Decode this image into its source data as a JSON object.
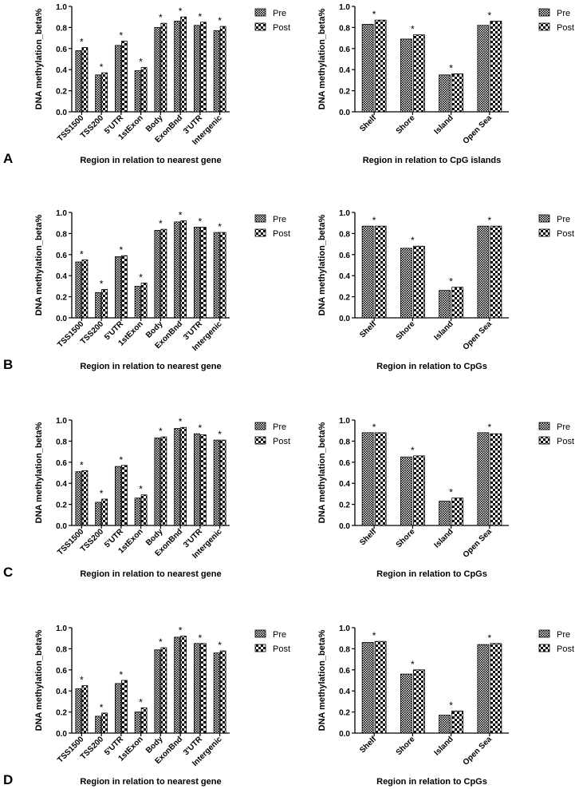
{
  "legend": {
    "pre": "Pre",
    "post": "Post"
  },
  "star": "*",
  "chart_data": [
    {
      "panel_letter": "A",
      "type": "bar",
      "ylabel": "DNA methylation_beta%",
      "xlabel": "Region in relation to nearest gene",
      "ylim": [
        0,
        1.0
      ],
      "yticks": [
        "0.0",
        "0.2",
        "0.4",
        "0.6",
        "0.8",
        "1.0"
      ],
      "categories": [
        "TSS1500",
        "TSS200",
        "5'UTR",
        "1stExon",
        "Body",
        "ExonBnd",
        "3'UTR",
        "Intergenic"
      ],
      "series": [
        {
          "name": "Pre",
          "values": [
            0.58,
            0.35,
            0.63,
            0.39,
            0.8,
            0.86,
            0.82,
            0.77
          ]
        },
        {
          "name": "Post",
          "values": [
            0.61,
            0.37,
            0.67,
            0.42,
            0.84,
            0.9,
            0.85,
            0.81
          ]
        }
      ],
      "annotations": [
        "*",
        "*",
        "*",
        "*",
        "*",
        "*",
        "*",
        "*"
      ],
      "legend_position": "top-right"
    },
    {
      "panel_letter": "",
      "type": "bar",
      "ylabel": "DNA methylation_beta%",
      "xlabel": "Region in relation to CpG islands",
      "ylim": [
        0,
        1.0
      ],
      "yticks": [
        "0.0",
        "0.2",
        "0.4",
        "0.6",
        "0.8",
        "1.0"
      ],
      "categories": [
        "Shelf",
        "Shore",
        "Island",
        "Open Sea"
      ],
      "series": [
        {
          "name": "Pre",
          "values": [
            0.83,
            0.69,
            0.35,
            0.82
          ]
        },
        {
          "name": "Post",
          "values": [
            0.87,
            0.73,
            0.36,
            0.86
          ]
        }
      ],
      "annotations": [
        "*",
        "*",
        "*",
        "*"
      ],
      "legend_position": "top-right"
    },
    {
      "panel_letter": "B",
      "type": "bar",
      "ylabel": "DNA methylation_beta%",
      "xlabel": "Region in relation to nearest gene",
      "ylim": [
        0,
        1.0
      ],
      "yticks": [
        "0.0",
        "0.2",
        "0.4",
        "0.6",
        "0.8",
        "1.0"
      ],
      "categories": [
        "TSS1500",
        "TSS200",
        "5'UTR",
        "1stExon",
        "Body",
        "ExonBnd",
        "3'UTR",
        "Intergenic"
      ],
      "series": [
        {
          "name": "Pre",
          "values": [
            0.53,
            0.24,
            0.58,
            0.3,
            0.83,
            0.91,
            0.86,
            0.81
          ]
        },
        {
          "name": "Post",
          "values": [
            0.55,
            0.27,
            0.59,
            0.33,
            0.84,
            0.92,
            0.86,
            0.81
          ]
        }
      ],
      "annotations": [
        "*",
        "*",
        "*",
        "*",
        "*",
        "*",
        "*",
        "*"
      ],
      "legend_position": "top-right"
    },
    {
      "panel_letter": "",
      "type": "bar",
      "ylabel": "DNA methylation_beta%",
      "xlabel": "Region in relation to CpGs",
      "ylim": [
        0,
        1.0
      ],
      "yticks": [
        "0.0",
        "0.2",
        "0.4",
        "0.6",
        "0.8",
        "1.0"
      ],
      "categories": [
        "Shelf",
        "Shore",
        "Island",
        "Open Sea"
      ],
      "series": [
        {
          "name": "Pre",
          "values": [
            0.87,
            0.66,
            0.26,
            0.87
          ]
        },
        {
          "name": "Post",
          "values": [
            0.87,
            0.68,
            0.29,
            0.87
          ]
        }
      ],
      "annotations": [
        "*",
        "*",
        "*",
        "*"
      ],
      "legend_position": "top-right"
    },
    {
      "panel_letter": "C",
      "type": "bar",
      "ylabel": "DNA methylation_beta%",
      "xlabel": "Region in relation to nearest gene",
      "ylim": [
        0,
        1.0
      ],
      "yticks": [
        "0.0",
        "0.2",
        "0.4",
        "0.6",
        "0.8",
        "1.0"
      ],
      "categories": [
        "TSS1500",
        "TSS200",
        "5'UTR",
        "1stExon",
        "Body",
        "ExonBnd",
        "3'UTR",
        "Intergenic"
      ],
      "series": [
        {
          "name": "Pre",
          "values": [
            0.51,
            0.22,
            0.56,
            0.26,
            0.83,
            0.92,
            0.87,
            0.81
          ]
        },
        {
          "name": "Post",
          "values": [
            0.52,
            0.25,
            0.57,
            0.29,
            0.84,
            0.93,
            0.86,
            0.81
          ]
        }
      ],
      "annotations": [
        "*",
        "*",
        "*",
        "*",
        "*",
        "*",
        "*",
        "*"
      ],
      "legend_position": "top-right"
    },
    {
      "panel_letter": "",
      "type": "bar",
      "ylabel": "DNA methylation_beta%",
      "xlabel": "Region in relation to CpGs",
      "ylim": [
        0,
        1.0
      ],
      "yticks": [
        "0.0",
        "0.2",
        "0.4",
        "0.6",
        "0.8",
        "1.0"
      ],
      "categories": [
        "Shelf",
        "Shore",
        "Island",
        "Open Sea"
      ],
      "series": [
        {
          "name": "Pre",
          "values": [
            0.88,
            0.65,
            0.23,
            0.88
          ]
        },
        {
          "name": "Post",
          "values": [
            0.88,
            0.66,
            0.26,
            0.87
          ]
        }
      ],
      "annotations": [
        "*",
        "*",
        "*",
        "*"
      ],
      "legend_position": "top-right"
    },
    {
      "panel_letter": "D",
      "type": "bar",
      "ylabel": "DNA methylation_beta%",
      "xlabel": "Region in relation to nearest gene",
      "ylim": [
        0,
        1.0
      ],
      "yticks": [
        "0.0",
        "0.2",
        "0.4",
        "0.6",
        "0.8",
        "1.0"
      ],
      "categories": [
        "TSS1500",
        "TSS200",
        "5'UTR",
        "1stExon",
        "Body",
        "ExonBnd",
        "3'UTR",
        "Intergenic"
      ],
      "series": [
        {
          "name": "Pre",
          "values": [
            0.42,
            0.16,
            0.47,
            0.2,
            0.79,
            0.91,
            0.85,
            0.76
          ]
        },
        {
          "name": "Post",
          "values": [
            0.45,
            0.19,
            0.5,
            0.24,
            0.81,
            0.92,
            0.85,
            0.78
          ]
        }
      ],
      "annotations": [
        "*",
        "*",
        "*",
        "*",
        "*",
        "*",
        "*",
        "*"
      ],
      "legend_position": "top-right"
    },
    {
      "panel_letter": "",
      "type": "bar",
      "ylabel": "DNA methylation_beta%",
      "xlabel": "Region in relation to CpGs",
      "ylim": [
        0,
        1.0
      ],
      "yticks": [
        "0.0",
        "0.2",
        "0.4",
        "0.6",
        "0.8",
        "1.0"
      ],
      "categories": [
        "Shelf",
        "Shore",
        "Island",
        "Open Sea"
      ],
      "series": [
        {
          "name": "Pre",
          "values": [
            0.86,
            0.56,
            0.17,
            0.84
          ]
        },
        {
          "name": "Post",
          "values": [
            0.87,
            0.6,
            0.21,
            0.85
          ]
        }
      ],
      "annotations": [
        "*",
        "*",
        "*",
        "*"
      ],
      "legend_position": "top-right"
    }
  ]
}
